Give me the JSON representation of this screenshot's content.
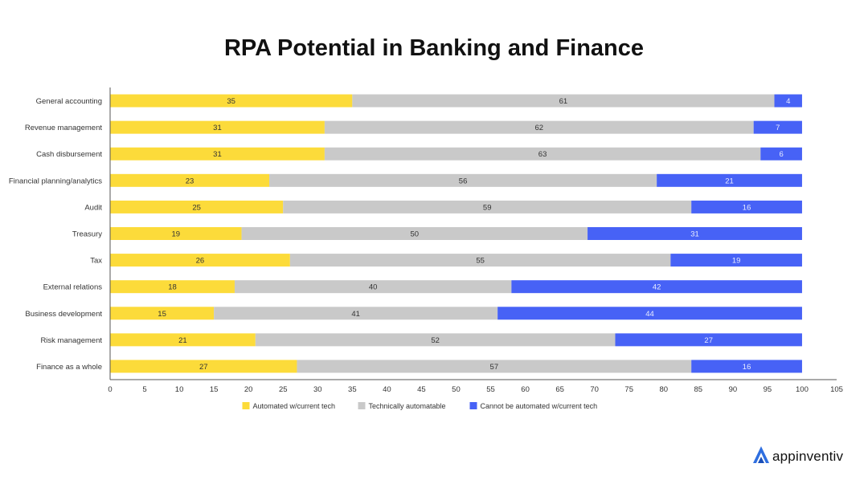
{
  "chart_data": {
    "type": "bar",
    "orientation": "horizontal",
    "stacked": true,
    "title": "RPA Potential in Banking and Finance",
    "categories": [
      "General accounting",
      "Revenue management",
      "Cash disbursement",
      "Financial planning/analytics",
      "Audit",
      "Treasury",
      "Tax",
      "External relations",
      "Business development",
      "Risk management",
      "Finance as a whole"
    ],
    "series": [
      {
        "name": "Automated w/current tech",
        "color": "#FCDB3A",
        "label_color": "#333333",
        "values": [
          35,
          31,
          31,
          23,
          25,
          19,
          26,
          18,
          15,
          21,
          27
        ]
      },
      {
        "name": "Technically automatable",
        "color": "#C9C9C9",
        "label_color": "#333333",
        "values": [
          61,
          62,
          63,
          56,
          59,
          50,
          55,
          40,
          41,
          52,
          57
        ]
      },
      {
        "name": "Cannot be automated w/current tech",
        "color": "#4762F6",
        "label_color": "#E8ECFF",
        "values": [
          4,
          7,
          6,
          21,
          16,
          31,
          19,
          42,
          44,
          27,
          16
        ]
      }
    ],
    "xlim": [
      0,
      105
    ],
    "xticks": [
      0,
      5,
      10,
      15,
      20,
      25,
      30,
      35,
      40,
      45,
      50,
      55,
      60,
      65,
      70,
      75,
      80,
      85,
      90,
      95,
      100,
      105
    ],
    "xlabel": "",
    "ylabel": "",
    "grid": false,
    "legend_position": "bottom"
  },
  "brand": {
    "name": "appinventiv",
    "logo_icon": "appinventiv-logo-icon",
    "logo_color": "#2F6FE0"
  }
}
